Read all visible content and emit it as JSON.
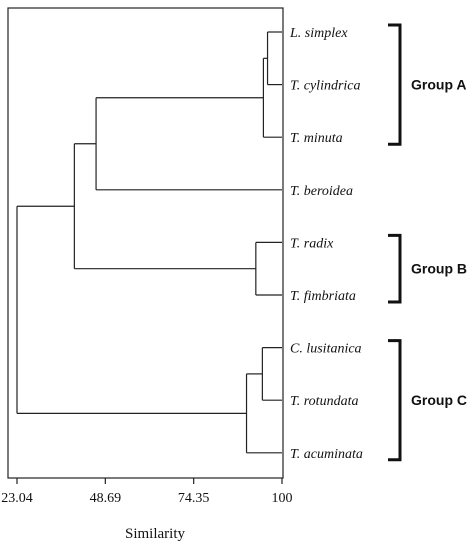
{
  "chart_data": {
    "type": "dendrogram",
    "xlabel": "Similarity",
    "xlim": [
      23.04,
      100
    ],
    "x_ticks": [
      "23.04",
      "48.69",
      "74.35",
      "100"
    ],
    "x_tick_values": [
      23.04,
      48.69,
      74.35,
      100
    ],
    "leaves": [
      "L. simplex",
      "T. cylindrica",
      "T. minuta",
      "T. beroidea",
      "T. radix",
      "T. fimbriata",
      "C. lusitanica",
      "T. rotundata",
      "T. acuminata"
    ],
    "merges": [
      {
        "id": "m1",
        "children": [
          "L. simplex",
          "T. cylindrica"
        ],
        "similarity": 95.8
      },
      {
        "id": "m2",
        "children": [
          "m1",
          "T. minuta"
        ],
        "similarity": 94.6
      },
      {
        "id": "m3",
        "children": [
          "T. radix",
          "T. fimbriata"
        ],
        "similarity": 92.4
      },
      {
        "id": "m4",
        "children": [
          "C. lusitanica",
          "T. rotundata"
        ],
        "similarity": 94.3
      },
      {
        "id": "m5",
        "children": [
          "m4",
          "T. acuminata"
        ],
        "similarity": 89.7
      },
      {
        "id": "m6",
        "children": [
          "m2",
          "T. beroidea"
        ],
        "similarity": 46.0
      },
      {
        "id": "m7",
        "children": [
          "m6",
          "m3"
        ],
        "similarity": 39.7
      },
      {
        "id": "m8",
        "children": [
          "m7",
          "m5"
        ],
        "similarity": 23.04
      }
    ],
    "groups": [
      {
        "label": "Group A",
        "members": [
          "L. simplex",
          "T. cylindrica",
          "T. minuta"
        ]
      },
      {
        "label": "Group B",
        "members": [
          "T. radix",
          "T. fimbriata"
        ]
      },
      {
        "label": "Group C",
        "members": [
          "C. lusitanica",
          "T. rotundata",
          "T. acuminata"
        ]
      }
    ]
  }
}
